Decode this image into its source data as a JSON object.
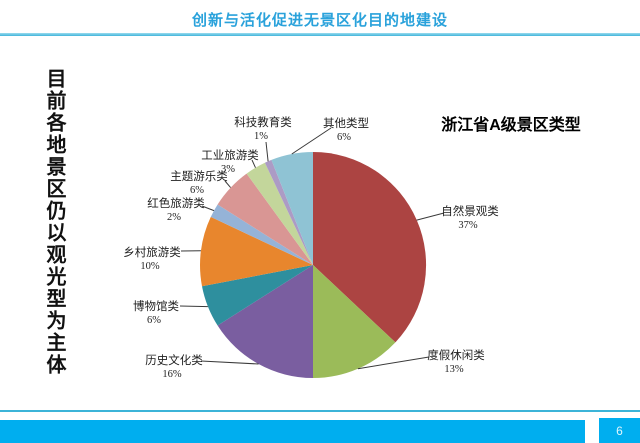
{
  "slide": {
    "header_title": "创新与活化促进无景区化目的地建设",
    "side_caption": "目前各地景区仍以观光型为主体",
    "page_number": "6",
    "accent_color": "#2aa2db",
    "footer_bar_color": "#00aeef"
  },
  "chart_data": {
    "type": "pie",
    "title": "浙江省A级景区类型",
    "unit": "%",
    "start_angle_deg": -90,
    "direction": "clockwise",
    "legend": "none",
    "labels": "outside-with-leader-lines",
    "slices": [
      {
        "label": "自然景观类",
        "value": 37,
        "color": "#AC4442"
      },
      {
        "label": "度假休闲类",
        "value": 13,
        "color": "#9BBB59"
      },
      {
        "label": "历史文化类",
        "value": 16,
        "color": "#7A5EA0"
      },
      {
        "label": "博物馆类",
        "value": 6,
        "color": "#2E8F9E"
      },
      {
        "label": "乡村旅游类",
        "value": 10,
        "color": "#E8862D"
      },
      {
        "label": "红色旅游类",
        "value": 2,
        "color": "#95B3D7"
      },
      {
        "label": "主题游乐类",
        "value": 6,
        "color": "#D99694"
      },
      {
        "label": "工业旅游类",
        "value": 3,
        "color": "#C3D69B"
      },
      {
        "label": "科技教育类",
        "value": 1,
        "color": "#AC9BC5"
      },
      {
        "label": "其他类型",
        "value": 6,
        "color": "#8FC3D4"
      }
    ]
  }
}
